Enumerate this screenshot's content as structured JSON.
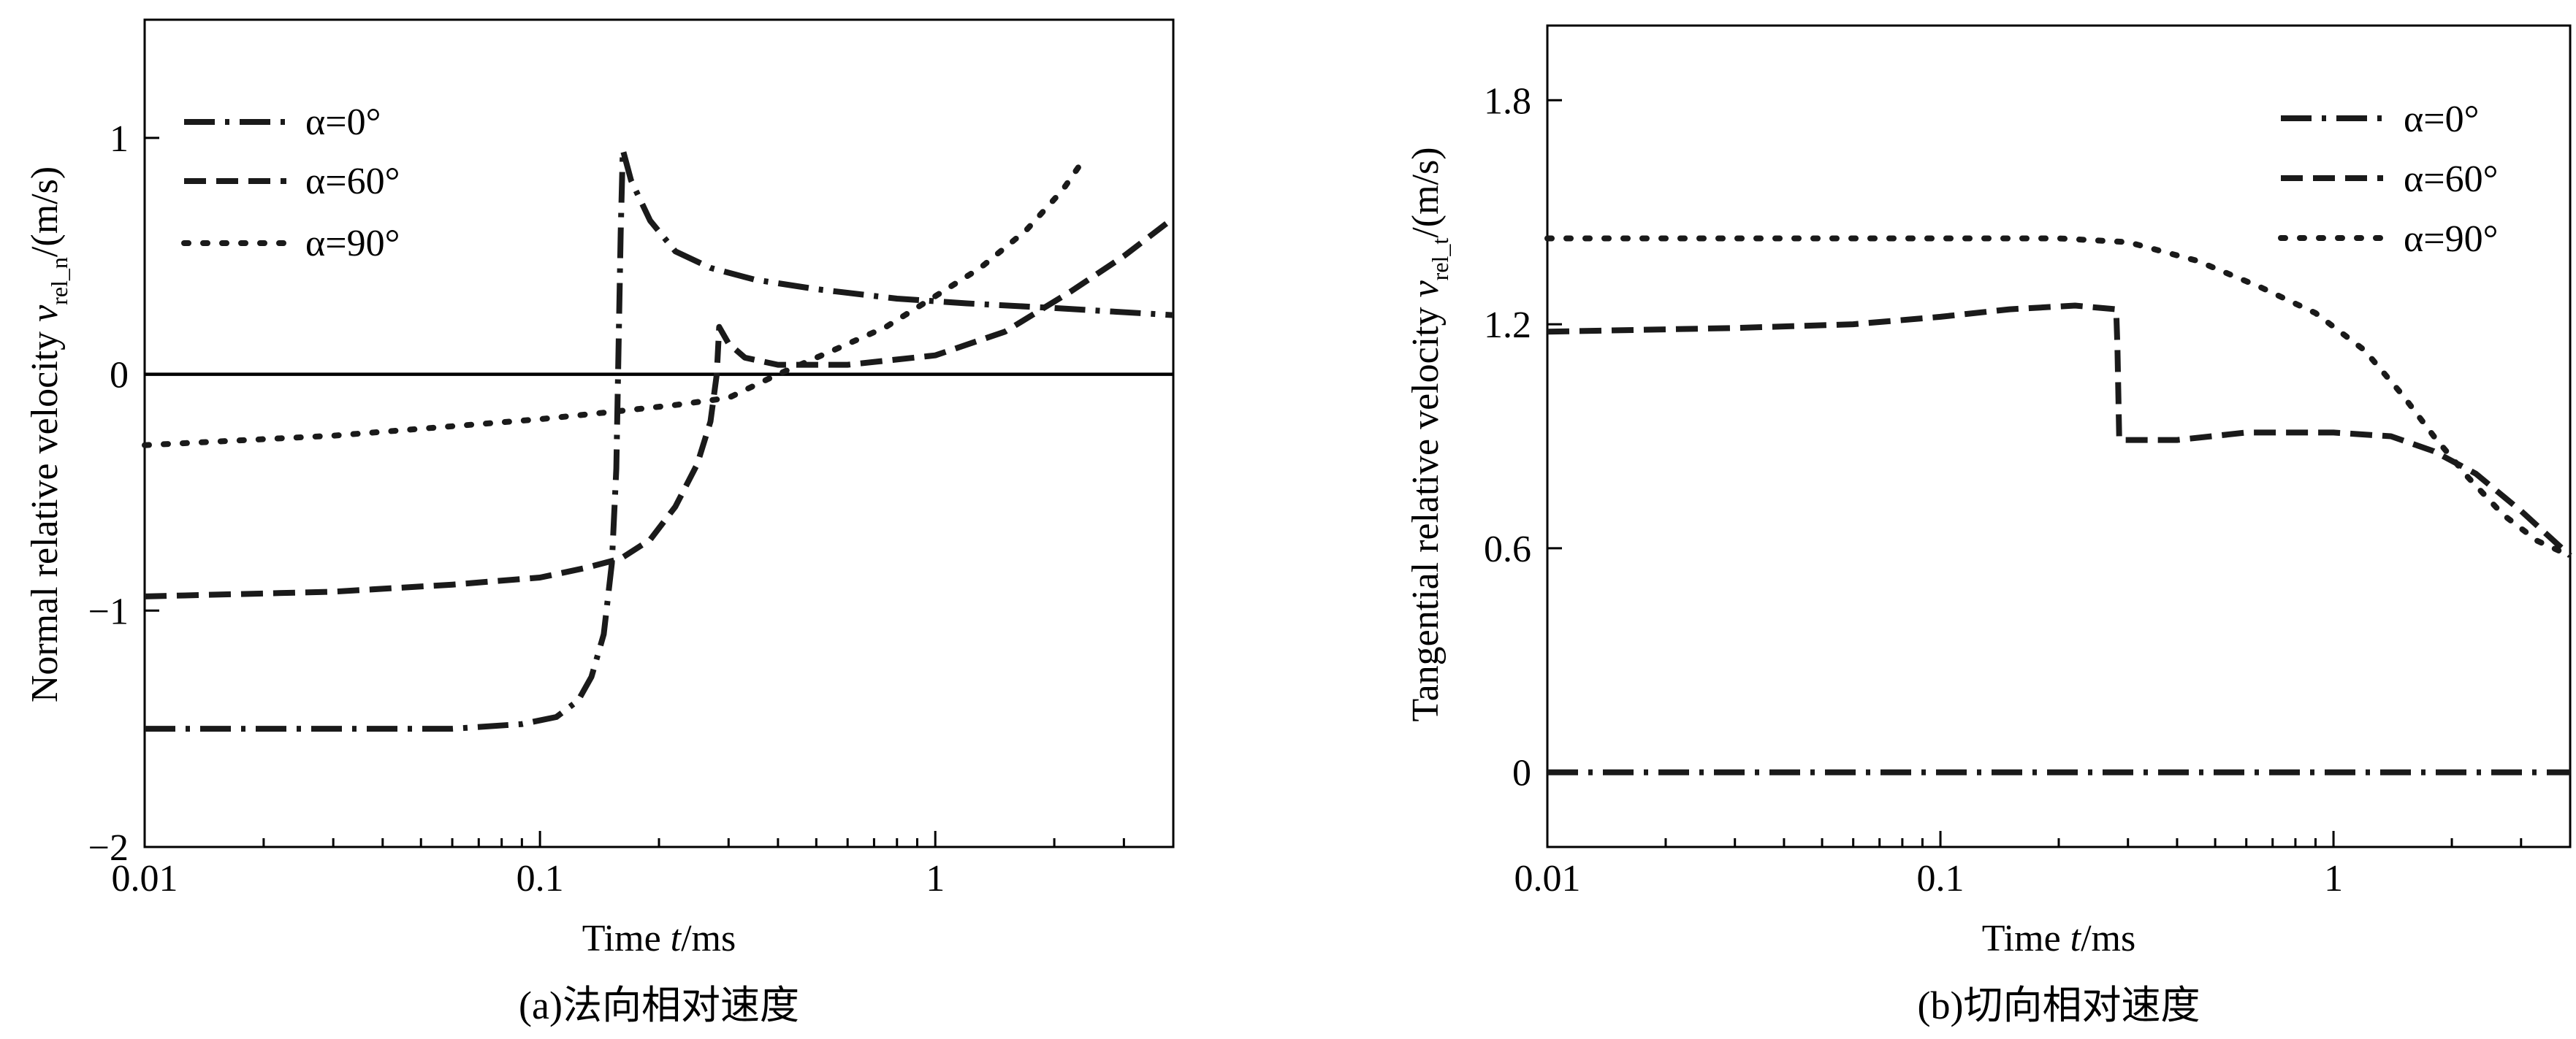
{
  "chart_data": [
    {
      "type": "line",
      "caption": "(a)法向相对速度",
      "xlabel": "Time t/ms",
      "ylabel": "Normal relative velocity v_rel_n/(m/s)",
      "xscale": "log",
      "xlim": [
        0.01,
        4
      ],
      "ylim": [
        -2,
        1.5
      ],
      "x_ticks": [
        0.01,
        0.1,
        1
      ],
      "x_tick_labels": [
        "0.01",
        "0.1",
        "1"
      ],
      "y_ticks": [
        -2,
        -1,
        0,
        1
      ],
      "y_tick_labels": [
        "−2",
        "−1",
        "0",
        "1"
      ],
      "reference_line": 0,
      "legend_position": "top-left",
      "series": [
        {
          "name": "α=0°",
          "style": "dashdot",
          "points": [
            [
              0.01,
              -1.5
            ],
            [
              0.03,
              -1.5
            ],
            [
              0.06,
              -1.5
            ],
            [
              0.09,
              -1.48
            ],
            [
              0.11,
              -1.45
            ],
            [
              0.125,
              -1.38
            ],
            [
              0.135,
              -1.28
            ],
            [
              0.145,
              -1.1
            ],
            [
              0.152,
              -0.8
            ],
            [
              0.156,
              -0.4
            ],
            [
              0.158,
              0.1
            ],
            [
              0.16,
              0.6
            ],
            [
              0.162,
              0.95
            ],
            [
              0.17,
              0.82
            ],
            [
              0.19,
              0.65
            ],
            [
              0.22,
              0.52
            ],
            [
              0.27,
              0.45
            ],
            [
              0.35,
              0.4
            ],
            [
              0.5,
              0.36
            ],
            [
              0.8,
              0.32
            ],
            [
              1.2,
              0.3
            ],
            [
              2,
              0.28
            ],
            [
              4,
              0.25
            ]
          ]
        },
        {
          "name": "α=60°",
          "style": "dashed",
          "points": [
            [
              0.01,
              -0.94
            ],
            [
              0.03,
              -0.92
            ],
            [
              0.06,
              -0.89
            ],
            [
              0.1,
              -0.86
            ],
            [
              0.13,
              -0.82
            ],
            [
              0.16,
              -0.78
            ],
            [
              0.19,
              -0.7
            ],
            [
              0.22,
              -0.56
            ],
            [
              0.25,
              -0.38
            ],
            [
              0.27,
              -0.2
            ],
            [
              0.28,
              0.0
            ],
            [
              0.284,
              0.2
            ],
            [
              0.3,
              0.13
            ],
            [
              0.33,
              0.07
            ],
            [
              0.4,
              0.04
            ],
            [
              0.6,
              0.04
            ],
            [
              1,
              0.08
            ],
            [
              1.5,
              0.18
            ],
            [
              2.2,
              0.35
            ],
            [
              3,
              0.5
            ],
            [
              4,
              0.66
            ]
          ]
        },
        {
          "name": "α=90°",
          "style": "dotted",
          "points": [
            [
              0.01,
              -0.3
            ],
            [
              0.03,
              -0.26
            ],
            [
              0.06,
              -0.22
            ],
            [
              0.1,
              -0.19
            ],
            [
              0.15,
              -0.16
            ],
            [
              0.22,
              -0.13
            ],
            [
              0.3,
              -0.1
            ],
            [
              0.4,
              0.0
            ],
            [
              0.55,
              0.1
            ],
            [
              0.75,
              0.2
            ],
            [
              1,
              0.33
            ],
            [
              1.3,
              0.45
            ],
            [
              1.7,
              0.61
            ],
            [
              2.1,
              0.78
            ],
            [
              2.4,
              0.92
            ]
          ]
        }
      ]
    },
    {
      "type": "line",
      "caption": "(b)切向相对速度",
      "xlabel": "Time t/ms",
      "ylabel": "Tangential relative velocity v_rel_t/(m/s)",
      "xscale": "log",
      "xlim": [
        0.01,
        4
      ],
      "ylim": [
        -0.2,
        2.0
      ],
      "x_ticks": [
        0.01,
        0.1,
        1
      ],
      "x_tick_labels": [
        "0.01",
        "0.1",
        "1"
      ],
      "y_ticks": [
        0,
        0.6,
        1.2,
        1.8
      ],
      "y_tick_labels": [
        "0",
        "0.6",
        "1.2",
        "1.8"
      ],
      "legend_position": "top-right",
      "series": [
        {
          "name": "α=0°",
          "style": "dashdot",
          "points": [
            [
              0.01,
              0.0
            ],
            [
              4,
              0.0
            ]
          ]
        },
        {
          "name": "α=60°",
          "style": "dashed",
          "points": [
            [
              0.01,
              1.18
            ],
            [
              0.03,
              1.19
            ],
            [
              0.06,
              1.2
            ],
            [
              0.1,
              1.22
            ],
            [
              0.15,
              1.24
            ],
            [
              0.22,
              1.25
            ],
            [
              0.28,
              1.24
            ],
            [
              0.282,
              1.14
            ],
            [
              0.285,
              0.89
            ],
            [
              0.3,
              0.89
            ],
            [
              0.4,
              0.89
            ],
            [
              0.6,
              0.91
            ],
            [
              1,
              0.91
            ],
            [
              1.4,
              0.9
            ],
            [
              1.8,
              0.86
            ],
            [
              2.3,
              0.8
            ],
            [
              3,
              0.7
            ],
            [
              4,
              0.58
            ]
          ]
        },
        {
          "name": "α=90°",
          "style": "dotted",
          "points": [
            [
              0.01,
              1.43
            ],
            [
              0.1,
              1.43
            ],
            [
              0.2,
              1.43
            ],
            [
              0.3,
              1.42
            ],
            [
              0.45,
              1.37
            ],
            [
              0.65,
              1.3
            ],
            [
              0.9,
              1.23
            ],
            [
              1.2,
              1.13
            ],
            [
              1.5,
              1.01
            ],
            [
              1.8,
              0.9
            ],
            [
              2.2,
              0.79
            ],
            [
              2.7,
              0.69
            ],
            [
              3.3,
              0.62
            ],
            [
              4,
              0.58
            ]
          ]
        }
      ]
    }
  ]
}
